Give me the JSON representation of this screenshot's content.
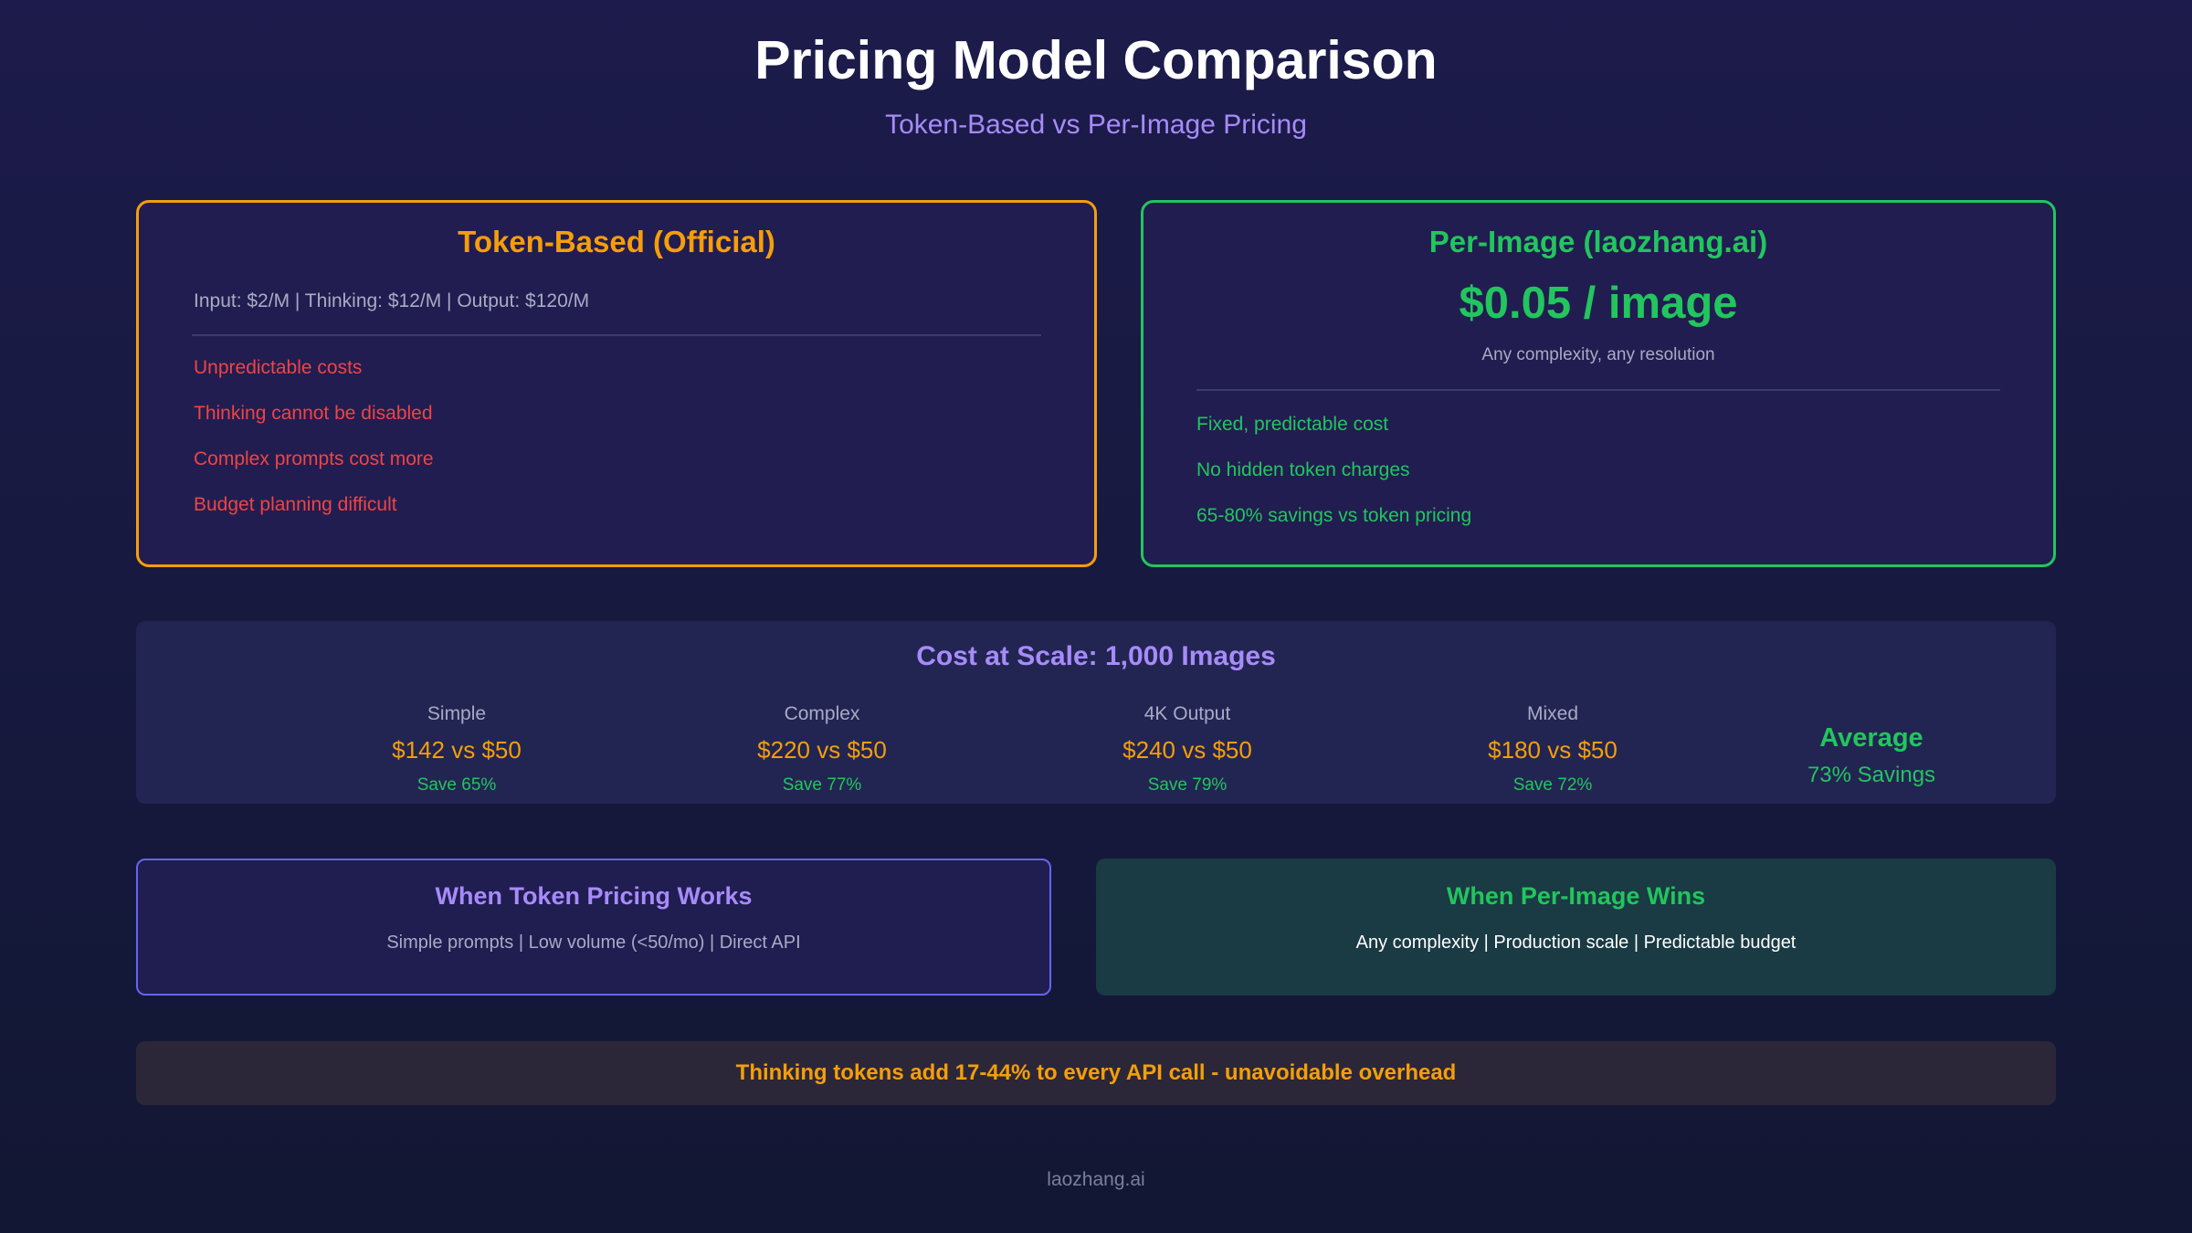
{
  "header": {
    "title": "Pricing Model Comparison",
    "subtitle": "Token-Based vs Per-Image Pricing"
  },
  "token_card": {
    "title": "Token-Based (Official)",
    "rates": "Input: $2/M | Thinking: $12/M | Output: $120/M",
    "cons": [
      "Unpredictable costs",
      "Thinking cannot be disabled",
      "Complex prompts cost more",
      "Budget planning difficult"
    ]
  },
  "image_card": {
    "title": "Per-Image (laozhang.ai)",
    "price": "$0.05 / image",
    "price_note": "Any complexity, any resolution",
    "pros": [
      "Fixed, predictable cost",
      "No hidden token charges",
      "65-80% savings vs token pricing"
    ]
  },
  "scale": {
    "title": "Cost at Scale: 1,000 Images",
    "scenarios": [
      {
        "name": "Simple",
        "cost": "$142 vs $50",
        "save": "Save 65%"
      },
      {
        "name": "Complex",
        "cost": "$220 vs $50",
        "save": "Save 77%"
      },
      {
        "name": "4K Output",
        "cost": "$240 vs $50",
        "save": "Save 79%"
      },
      {
        "name": "Mixed",
        "cost": "$180 vs $50",
        "save": "Save 72%"
      }
    ],
    "average_label": "Average",
    "average_value": "73% Savings"
  },
  "when_token": {
    "title": "When Token Pricing Works",
    "text": "Simple prompts | Low volume (<50/mo) | Direct API"
  },
  "when_image": {
    "title": "When Per-Image Wins",
    "text": "Any complexity | Production scale | Predictable budget"
  },
  "warning": "Thinking tokens add 17-44% to every API call - unavoidable overhead",
  "footer": "laozhang.ai",
  "colors": {
    "background": "#1c1b4b",
    "token_accent": "#f59e0b",
    "image_accent": "#22c55e",
    "purple_accent": "#a78bfa",
    "negative": "#ef4444"
  }
}
